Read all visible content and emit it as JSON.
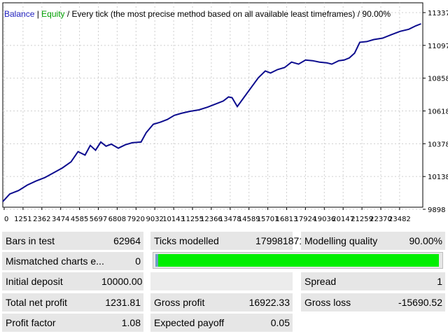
{
  "legend": {
    "balance_label": "Balance",
    "sep1": " | ",
    "equity_label": "Equity",
    "sep2": " / ",
    "method": "Every tick (the most precise method based on all available least timeframes)",
    "sep3": " / ",
    "quality": "90.00%"
  },
  "colors": {
    "balance": "#1f1fbf",
    "equity": "#00a000",
    "line": "#0c0c8e",
    "progress": "#00ee00",
    "panel": "#e6e6e6"
  },
  "chart_data": {
    "type": "line",
    "x_ticks": [
      "0",
      "1251",
      "2362",
      "3474",
      "4585",
      "5697",
      "6808",
      "7920",
      "9032",
      "10143",
      "11255",
      "12366",
      "13478",
      "14589",
      "15701",
      "16813",
      "17924",
      "19036",
      "20147",
      "21259",
      "22370",
      "23482"
    ],
    "y_ticks": [
      "11337",
      "11097",
      "10858",
      "10618",
      "10378",
      "10138",
      "9898"
    ],
    "xlim": [
      0,
      24000
    ],
    "ylim": [
      9898,
      11337
    ],
    "grid": true,
    "series": [
      {
        "name": "Balance",
        "x": [
          0,
          400,
          900,
          1400,
          1900,
          2400,
          2900,
          3400,
          3900,
          4300,
          4700,
          5000,
          5300,
          5600,
          5900,
          6200,
          6600,
          7000,
          7400,
          7900,
          8200,
          8600,
          9000,
          9400,
          9800,
          10200,
          10700,
          11200,
          11700,
          12200,
          12600,
          12900,
          13100,
          13400,
          13800,
          14200,
          14600,
          15000,
          15300,
          15700,
          16100,
          16500,
          16900,
          17300,
          17700,
          18100,
          18500,
          18800,
          19200,
          19500,
          19800,
          20100,
          20400,
          20800,
          21200,
          21700,
          22200,
          22700,
          23200,
          23600,
          23900
        ],
        "y": [
          9955,
          10010,
          10035,
          10075,
          10105,
          10130,
          10165,
          10200,
          10245,
          10320,
          10295,
          10365,
          10330,
          10390,
          10360,
          10375,
          10345,
          10370,
          10385,
          10390,
          10460,
          10520,
          10535,
          10555,
          10585,
          10600,
          10615,
          10625,
          10645,
          10670,
          10690,
          10720,
          10715,
          10650,
          10720,
          10790,
          10860,
          10910,
          10895,
          10920,
          10935,
          10975,
          10960,
          10990,
          10985,
          10975,
          10970,
          10960,
          10985,
          10990,
          11005,
          11040,
          11120,
          11125,
          11140,
          11150,
          11175,
          11200,
          11215,
          11240,
          11255
        ]
      }
    ]
  },
  "stats": {
    "bars_label": "Bars in test",
    "bars_value": "62964",
    "ticks_label": "Ticks modelled",
    "ticks_value": "179981871",
    "mq_label": "Modelling quality",
    "mq_value": "90.00%",
    "mismatch_label": "Mismatched charts e...",
    "mismatch_value": "0",
    "quality_fraction": 0.9,
    "deposit_label": "Initial deposit",
    "deposit_value": "10000.00",
    "spread_label": "Spread",
    "spread_value": "1",
    "netprofit_label": "Total net profit",
    "netprofit_value": "1231.81",
    "grossprofit_label": "Gross profit",
    "grossprofit_value": "16922.33",
    "grossloss_label": "Gross loss",
    "grossloss_value": "-15690.52",
    "pf_label": "Profit factor",
    "pf_value": "1.08",
    "payoff_label": "Expected payoff",
    "payoff_value": "0.05"
  }
}
